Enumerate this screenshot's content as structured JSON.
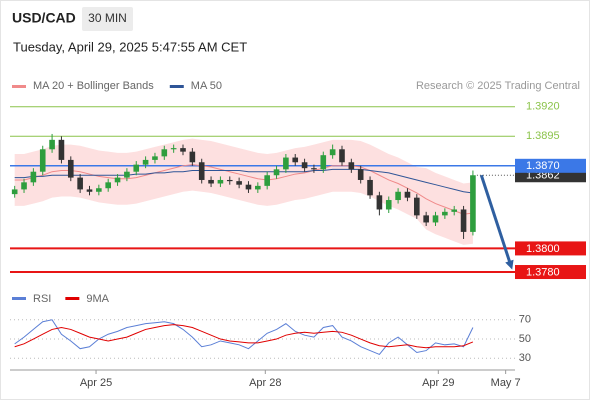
{
  "chart_data": {
    "type": "candlestick",
    "symbol": "USD/CAD",
    "timeframe": "30 MIN",
    "timestamp": "Tuesday, April 29, 2025 5:47:55 AM CET",
    "credit": "Research © 2025 Trading Central",
    "xlim": [
      0,
      54
    ],
    "xticks": [
      {
        "value": 9.2,
        "label": "Apr 25"
      },
      {
        "value": 27.3,
        "label": "Apr 28"
      },
      {
        "value": 45.8,
        "label": "Apr 29"
      },
      {
        "value": 53,
        "label": "May 7"
      }
    ],
    "ylim": [
      1.3769,
      1.393
    ],
    "up_color": "#2e9e3e",
    "down_color": "#333333",
    "open": [
      1.3846,
      1.385,
      1.3856,
      1.3865,
      1.3884,
      1.3892,
      1.3875,
      1.386,
      1.385,
      1.3848,
      1.3851,
      1.3856,
      1.386,
      1.3865,
      1.3871,
      1.3875,
      1.3878,
      1.3884,
      1.3885,
      1.3882,
      1.3873,
      1.3858,
      1.3855,
      1.3858,
      1.3857,
      1.3854,
      1.385,
      1.3853,
      1.3862,
      1.3867,
      1.3877,
      1.3873,
      1.3868,
      1.3867,
      1.3879,
      1.3884,
      1.3873,
      1.3867,
      1.3858,
      1.3845,
      1.3833,
      1.3841,
      1.3848,
      1.3843,
      1.3828,
      1.3822,
      1.3828,
      1.3831,
      1.3833,
      1.3814
    ],
    "high": [
      1.3853,
      1.3859,
      1.3868,
      1.3887,
      1.3897,
      1.3895,
      1.3878,
      1.3863,
      1.3853,
      1.3854,
      1.3859,
      1.3863,
      1.3868,
      1.3874,
      1.3878,
      1.3881,
      1.3887,
      1.3888,
      1.3888,
      1.3885,
      1.3876,
      1.3861,
      1.3861,
      1.3861,
      1.386,
      1.3857,
      1.3856,
      1.3865,
      1.387,
      1.388,
      1.388,
      1.3876,
      1.3871,
      1.3882,
      1.3888,
      1.3887,
      1.3876,
      1.387,
      1.3861,
      1.3848,
      1.3844,
      1.3851,
      1.3851,
      1.3846,
      1.3831,
      1.3831,
      1.3834,
      1.3836,
      1.3836,
      1.3866
    ],
    "low": [
      1.3843,
      1.3847,
      1.3853,
      1.3862,
      1.3881,
      1.3872,
      1.3857,
      1.3847,
      1.3845,
      1.3845,
      1.3848,
      1.3853,
      1.3857,
      1.3862,
      1.3868,
      1.3872,
      1.3875,
      1.3881,
      1.3879,
      1.387,
      1.3855,
      1.3852,
      1.3852,
      1.3854,
      1.3851,
      1.3847,
      1.3847,
      1.385,
      1.3859,
      1.3864,
      1.387,
      1.3865,
      1.3864,
      1.3864,
      1.3876,
      1.387,
      1.3864,
      1.3855,
      1.3842,
      1.3828,
      1.383,
      1.3838,
      1.384,
      1.3825,
      1.3819,
      1.3819,
      1.3825,
      1.3828,
      1.3808,
      1.3811
    ],
    "close": [
      1.385,
      1.3856,
      1.3865,
      1.3884,
      1.3892,
      1.3875,
      1.386,
      1.385,
      1.3848,
      1.3851,
      1.3856,
      1.386,
      1.3865,
      1.3871,
      1.3875,
      1.3878,
      1.3884,
      1.3885,
      1.3882,
      1.3873,
      1.3858,
      1.3855,
      1.3858,
      1.3857,
      1.3854,
      1.385,
      1.3853,
      1.3862,
      1.3867,
      1.3877,
      1.3873,
      1.3868,
      1.3867,
      1.3879,
      1.3884,
      1.3873,
      1.3867,
      1.3858,
      1.3845,
      1.3833,
      1.3841,
      1.3848,
      1.3843,
      1.3828,
      1.3822,
      1.3828,
      1.3831,
      1.3833,
      1.3814,
      1.3862
    ],
    "overlays": [
      {
        "name": "MA 20 + Bollinger Bands",
        "color": "#f08a8a",
        "band_color": "#fde0e0",
        "values": [
          1.3858,
          1.3858,
          1.386,
          1.3862,
          1.3865,
          1.3866,
          1.3866,
          1.3865,
          1.3863,
          1.3861,
          1.386,
          1.3859,
          1.3859,
          1.386,
          1.3862,
          1.3864,
          1.3866,
          1.3868,
          1.387,
          1.3871,
          1.387,
          1.3869,
          1.3867,
          1.3865,
          1.3863,
          1.3861,
          1.3859,
          1.3858,
          1.3859,
          1.3861,
          1.3863,
          1.3864,
          1.3866,
          1.3868,
          1.387,
          1.387,
          1.387,
          1.3869,
          1.3866,
          1.3862,
          1.3858,
          1.3855,
          1.3851,
          1.3847,
          1.3842,
          1.3838,
          1.3835,
          1.3832,
          1.3829,
          1.383
        ],
        "upper": [
          1.388,
          1.388,
          1.3882,
          1.3884,
          1.3887,
          1.3888,
          1.3888,
          1.3887,
          1.3885,
          1.3883,
          1.3882,
          1.3881,
          1.3881,
          1.3882,
          1.3884,
          1.3886,
          1.3888,
          1.389,
          1.3892,
          1.3893,
          1.3892,
          1.3891,
          1.3889,
          1.3887,
          1.3885,
          1.3883,
          1.3881,
          1.388,
          1.3881,
          1.3883,
          1.3885,
          1.3886,
          1.3888,
          1.389,
          1.3892,
          1.3892,
          1.3892,
          1.3891,
          1.3888,
          1.3884,
          1.388,
          1.3877,
          1.3873,
          1.3869,
          1.3868,
          1.3864,
          1.3861,
          1.3858,
          1.3855,
          1.3856
        ],
        "lower": [
          1.3836,
          1.3836,
          1.3838,
          1.384,
          1.3843,
          1.3844,
          1.3844,
          1.3843,
          1.3841,
          1.3839,
          1.3838,
          1.3837,
          1.3837,
          1.3838,
          1.384,
          1.3842,
          1.3844,
          1.3846,
          1.3848,
          1.3849,
          1.3848,
          1.3847,
          1.3845,
          1.3843,
          1.3841,
          1.3839,
          1.3837,
          1.3836,
          1.3837,
          1.3839,
          1.3841,
          1.3842,
          1.3844,
          1.3846,
          1.3848,
          1.3848,
          1.3848,
          1.3847,
          1.3844,
          1.384,
          1.3836,
          1.3833,
          1.3829,
          1.3825,
          1.3816,
          1.3812,
          1.3809,
          1.3806,
          1.3803,
          1.3804
        ]
      },
      {
        "name": "MA 50",
        "color": "#2f5597",
        "values": [
          1.386,
          1.386,
          1.3861,
          1.3861,
          1.3862,
          1.3862,
          1.3862,
          1.3862,
          1.3862,
          1.3862,
          1.3862,
          1.3862,
          1.3862,
          1.3863,
          1.3863,
          1.3864,
          1.3864,
          1.3865,
          1.3865,
          1.3866,
          1.3866,
          1.3866,
          1.3866,
          1.3866,
          1.3866,
          1.3865,
          1.3865,
          1.3865,
          1.3865,
          1.3865,
          1.3865,
          1.3865,
          1.3866,
          1.3866,
          1.3867,
          1.3867,
          1.3867,
          1.3867,
          1.3866,
          1.3865,
          1.3864,
          1.3862,
          1.386,
          1.3858,
          1.3856,
          1.3854,
          1.3852,
          1.385,
          1.3848,
          1.3847
        ]
      }
    ],
    "levels": [
      {
        "value": 1.392,
        "label": "1.3920",
        "color": "#8bc34a",
        "style": "text"
      },
      {
        "value": 1.3895,
        "label": "1.3895",
        "color": "#8bc34a",
        "style": "text"
      },
      {
        "value": 1.3862,
        "label": "1.3862",
        "color": "#333333",
        "style": "current"
      },
      {
        "value": 1.387,
        "label": "1.3870",
        "color": "#3b78e7",
        "style": "box"
      },
      {
        "value": 1.38,
        "label": "1.3800",
        "color": "#e81515",
        "style": "box"
      },
      {
        "value": 1.378,
        "label": "1.3780",
        "color": "#e81515",
        "style": "box"
      }
    ],
    "forecast": {
      "color": "#2f5fa0",
      "x": [
        50.4,
        53.7
      ],
      "y": [
        1.3862,
        1.3782
      ]
    },
    "rsi": {
      "ylim": [
        23,
        75
      ],
      "yticks": [
        70,
        50,
        30
      ],
      "series": [
        {
          "name": "RSI",
          "color": "#5b7fd6",
          "values": [
            45,
            52,
            60,
            68,
            70,
            55,
            48,
            40,
            42,
            50,
            55,
            58,
            62,
            64,
            66,
            67,
            68,
            66,
            60,
            52,
            42,
            44,
            48,
            46,
            44,
            40,
            48,
            56,
            60,
            66,
            58,
            54,
            52,
            62,
            64,
            52,
            48,
            42,
            38,
            34,
            46,
            52,
            44,
            36,
            38,
            46,
            44,
            45,
            42,
            62
          ]
        },
        {
          "name": "9MA",
          "color": "#e00000",
          "values": [
            42,
            45,
            50,
            55,
            60,
            62,
            60,
            56,
            52,
            50,
            48,
            50,
            52,
            56,
            60,
            62,
            64,
            65,
            64,
            62,
            58,
            54,
            50,
            48,
            47,
            46,
            46,
            48,
            50,
            54,
            56,
            57,
            56,
            57,
            58,
            57,
            54,
            50,
            46,
            43,
            42,
            43,
            44,
            42,
            41,
            42,
            42,
            42,
            43,
            47
          ]
        }
      ]
    }
  }
}
